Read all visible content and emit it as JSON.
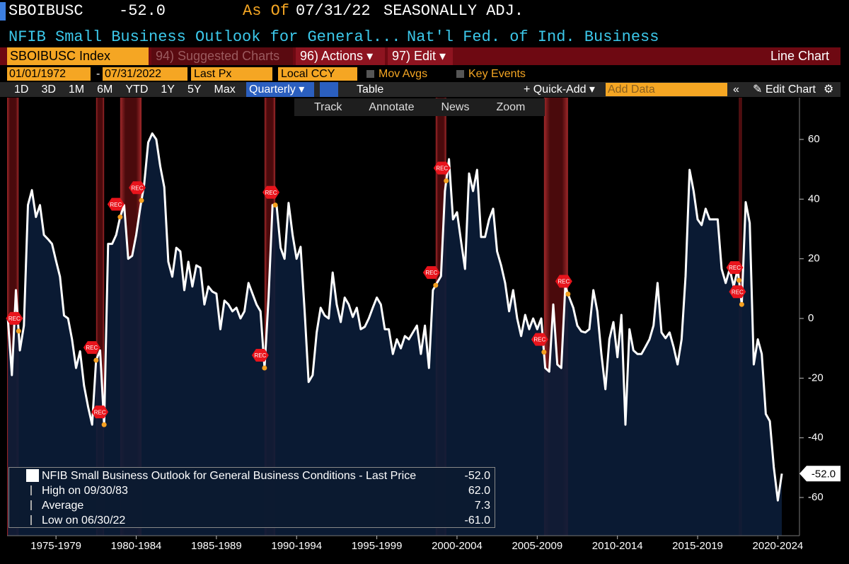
{
  "header": {
    "ticker": "SBOIBUSC",
    "as_of": "As Of",
    "date": "07/31/22",
    "adjustment": "SEASONALLY ADJ.",
    "description": "NFIB Small Business Outlook for General...",
    "source": "Nat'l Fed. of Ind. Business"
  },
  "toolbar": {
    "security": "SBOIBUSC Index",
    "suggested": "94) Suggested Charts",
    "actions": "96) Actions",
    "edit": "97) Edit",
    "chart_kind": "Line Chart",
    "start_date": "01/01/1972",
    "end_date": "07/31/2022",
    "field": "Last Px",
    "currency": "Local CCY",
    "mov_avgs": "Mov Avgs",
    "key_events": "Key Events",
    "periods": [
      "1D",
      "3D",
      "1M",
      "6M",
      "YTD",
      "1Y",
      "5Y",
      "Max"
    ],
    "frequency": "Quarterly",
    "table": "Table",
    "quick_add": "+ Quick-Add",
    "add_data": "Add Data",
    "edit_chart": "Edit Chart",
    "tools": [
      "Track",
      "Annotate",
      "News",
      "Zoom"
    ]
  },
  "chart_data": {
    "type": "line",
    "last_price": {
      "value": -52,
      "label": "-52.0"
    },
    "event_label": "REC",
    "stats": [
      {
        "name": "High on 09/30/83",
        "label": "62.0"
      },
      {
        "name": "Average",
        "label": "7.3"
      },
      {
        "name": "Low on 06/30/22",
        "label": "-61.0"
      }
    ],
    "xlim": [
      1974.45,
      2023.85
    ],
    "xticks": [
      {
        "value": 1977.5,
        "label": "1975-1979"
      },
      {
        "value": 1982.5,
        "label": "1980-1984"
      },
      {
        "value": 1987.5,
        "label": "1985-1989"
      },
      {
        "value": 1992.5,
        "label": "1990-1994"
      },
      {
        "value": 1997.5,
        "label": "1995-1999"
      },
      {
        "value": 2002.5,
        "label": "2000-2004"
      },
      {
        "value": 2007.5,
        "label": "2005-2009"
      },
      {
        "value": 2012.5,
        "label": "2010-2014"
      },
      {
        "value": 2017.5,
        "label": "2015-2019"
      },
      {
        "value": 2022.5,
        "label": "2020-2024"
      }
    ],
    "ylim": [
      -72.8,
      74
    ],
    "yticks": [
      -60,
      -40,
      -20,
      0,
      20,
      40,
      60
    ],
    "recessions": [
      {
        "start": 1973.83,
        "end": 1975.17
      },
      {
        "start": 1980.0,
        "end": 1980.5
      },
      {
        "start": 1981.5,
        "end": 1982.83
      },
      {
        "start": 1990.5,
        "end": 1991.17
      },
      {
        "start": 2001.17,
        "end": 2001.83
      },
      {
        "start": 2007.92,
        "end": 2009.42
      },
      {
        "start": 2020.08,
        "end": 2020.25
      }
    ],
    "x": [
      1974.5,
      1974.75,
      1975,
      1975.25,
      1975.5,
      1975.75,
      1976,
      1976.25,
      1976.5,
      1976.75,
      1977,
      1977.25,
      1977.5,
      1977.75,
      1978,
      1978.25,
      1978.5,
      1978.75,
      1979,
      1979.25,
      1979.5,
      1979.75,
      1980,
      1980.25,
      1980.5,
      1980.75,
      1981,
      1981.25,
      1981.5,
      1981.75,
      1982,
      1982.25,
      1982.5,
      1982.75,
      1983,
      1983.25,
      1983.5,
      1983.75,
      1984,
      1984.25,
      1984.5,
      1984.75,
      1985,
      1985.25,
      1985.5,
      1985.75,
      1986,
      1986.25,
      1986.5,
      1986.75,
      1987,
      1987.25,
      1987.5,
      1987.75,
      1988,
      1988.25,
      1988.5,
      1988.75,
      1989,
      1989.25,
      1989.5,
      1989.75,
      1990,
      1990.25,
      1990.5,
      1990.75,
      1991,
      1991.25,
      1991.5,
      1991.75,
      1992,
      1992.25,
      1992.5,
      1992.75,
      1993,
      1993.25,
      1993.5,
      1993.75,
      1994,
      1994.25,
      1994.5,
      1994.75,
      1995,
      1995.25,
      1995.5,
      1995.75,
      1996,
      1996.25,
      1996.5,
      1996.75,
      1997,
      1997.25,
      1997.5,
      1997.75,
      1998,
      1998.25,
      1998.5,
      1998.75,
      1999,
      1999.25,
      1999.5,
      1999.75,
      2000,
      2000.25,
      2000.5,
      2000.75,
      2001,
      2001.25,
      2001.5,
      2001.75,
      2002,
      2002.25,
      2002.5,
      2002.75,
      2003,
      2003.25,
      2003.5,
      2003.75,
      2004,
      2004.25,
      2004.5,
      2004.75,
      2005,
      2005.25,
      2005.5,
      2005.75,
      2006,
      2006.25,
      2006.5,
      2006.75,
      2007,
      2007.25,
      2007.5,
      2007.75,
      2008,
      2008.25,
      2008.5,
      2008.75,
      2009,
      2009.25,
      2009.5,
      2009.75,
      2010,
      2010.25,
      2010.5,
      2010.75,
      2011,
      2011.25,
      2011.5,
      2011.75,
      2012,
      2012.25,
      2012.5,
      2012.75,
      2013,
      2013.25,
      2013.5,
      2013.75,
      2014,
      2014.25,
      2014.5,
      2014.75,
      2015,
      2015.25,
      2015.5,
      2015.75,
      2016,
      2016.25,
      2016.5,
      2016.75,
      2017,
      2017.25,
      2017.5,
      2017.75,
      2018,
      2018.25,
      2018.5,
      2018.75,
      2019,
      2019.25,
      2019.5,
      2019.75,
      2020,
      2020.25,
      2020.5,
      2020.75,
      2021,
      2021.25,
      2021.5,
      2021.75,
      2022,
      2022.25,
      2022.5,
      2022.75
    ],
    "series": [
      {
        "name": "NFIB Small Business Outlook for General Business Conditions - Last Price",
        "color": "#ffffff",
        "area_color": "#0b1d38",
        "values": [
          0,
          -19,
          9.5,
          -10.7,
          -2.4,
          38,
          43,
          34,
          38,
          28,
          26.6,
          25,
          19.4,
          14,
          1,
          0,
          -7,
          -16.6,
          -11,
          -22.5,
          -29.6,
          -35.6,
          -14,
          -10.7,
          -35.6,
          25,
          25,
          28,
          34,
          38,
          20,
          21,
          28,
          37,
          45,
          59,
          62,
          60,
          51,
          44,
          19,
          14,
          23.7,
          22.5,
          9.5,
          19,
          10.7,
          17.8,
          17,
          4.7,
          10.7,
          9,
          8.3,
          -3.6,
          6,
          4.7,
          2.4,
          3.6,
          0,
          2.4,
          11.9,
          8.3,
          4.7,
          2.4,
          -16.6,
          7,
          38,
          38,
          23.7,
          20,
          38.7,
          28,
          20,
          24,
          2.4,
          -21.3,
          -19,
          -4.7,
          3.6,
          1,
          0,
          15.4,
          4.7,
          -1.2,
          7,
          4.7,
          0.5,
          3.6,
          -3.6,
          -2.8,
          0,
          3.6,
          7,
          4.7,
          -3.6,
          -3.6,
          -11.9,
          -7,
          -10,
          -5.9,
          -7,
          -4.7,
          -2.4,
          -11.9,
          -2.4,
          -16.6,
          9.5,
          11.9,
          14.2,
          42.7,
          53.4,
          33.2,
          35.6,
          26,
          16.6,
          48.6,
          42.7,
          49.8,
          27.3,
          27.3,
          33.2,
          36.8,
          22.5,
          17.8,
          11.9,
          2.4,
          9.5,
          0,
          -5.9,
          1.2,
          -3.6,
          0,
          -3.6,
          0,
          -16.6,
          -17.8,
          4.7,
          -15.4,
          -16.6,
          10.7,
          7,
          3.6,
          -2.4,
          -4.3,
          -4.7,
          -3.6,
          9.5,
          2.4,
          -11.9,
          -23.7,
          -7,
          -1.2,
          -13,
          1.2,
          -35.6,
          -3.6,
          -10.7,
          -11.9,
          -11.9,
          -9.5,
          -7,
          -2.4,
          11.9,
          -4.7,
          -6.6,
          -4.7,
          -9.5,
          -15.4,
          -7,
          14.2,
          49.8,
          42.7,
          33.2,
          31.3,
          36.8,
          33.2,
          33.2,
          33.2,
          16.6,
          11.9,
          16.6,
          10.7,
          16.6,
          4.7,
          39,
          32,
          -15.4,
          -7,
          -11.9,
          -32,
          -34.4,
          -49.8,
          -61,
          -52
        ]
      }
    ]
  }
}
